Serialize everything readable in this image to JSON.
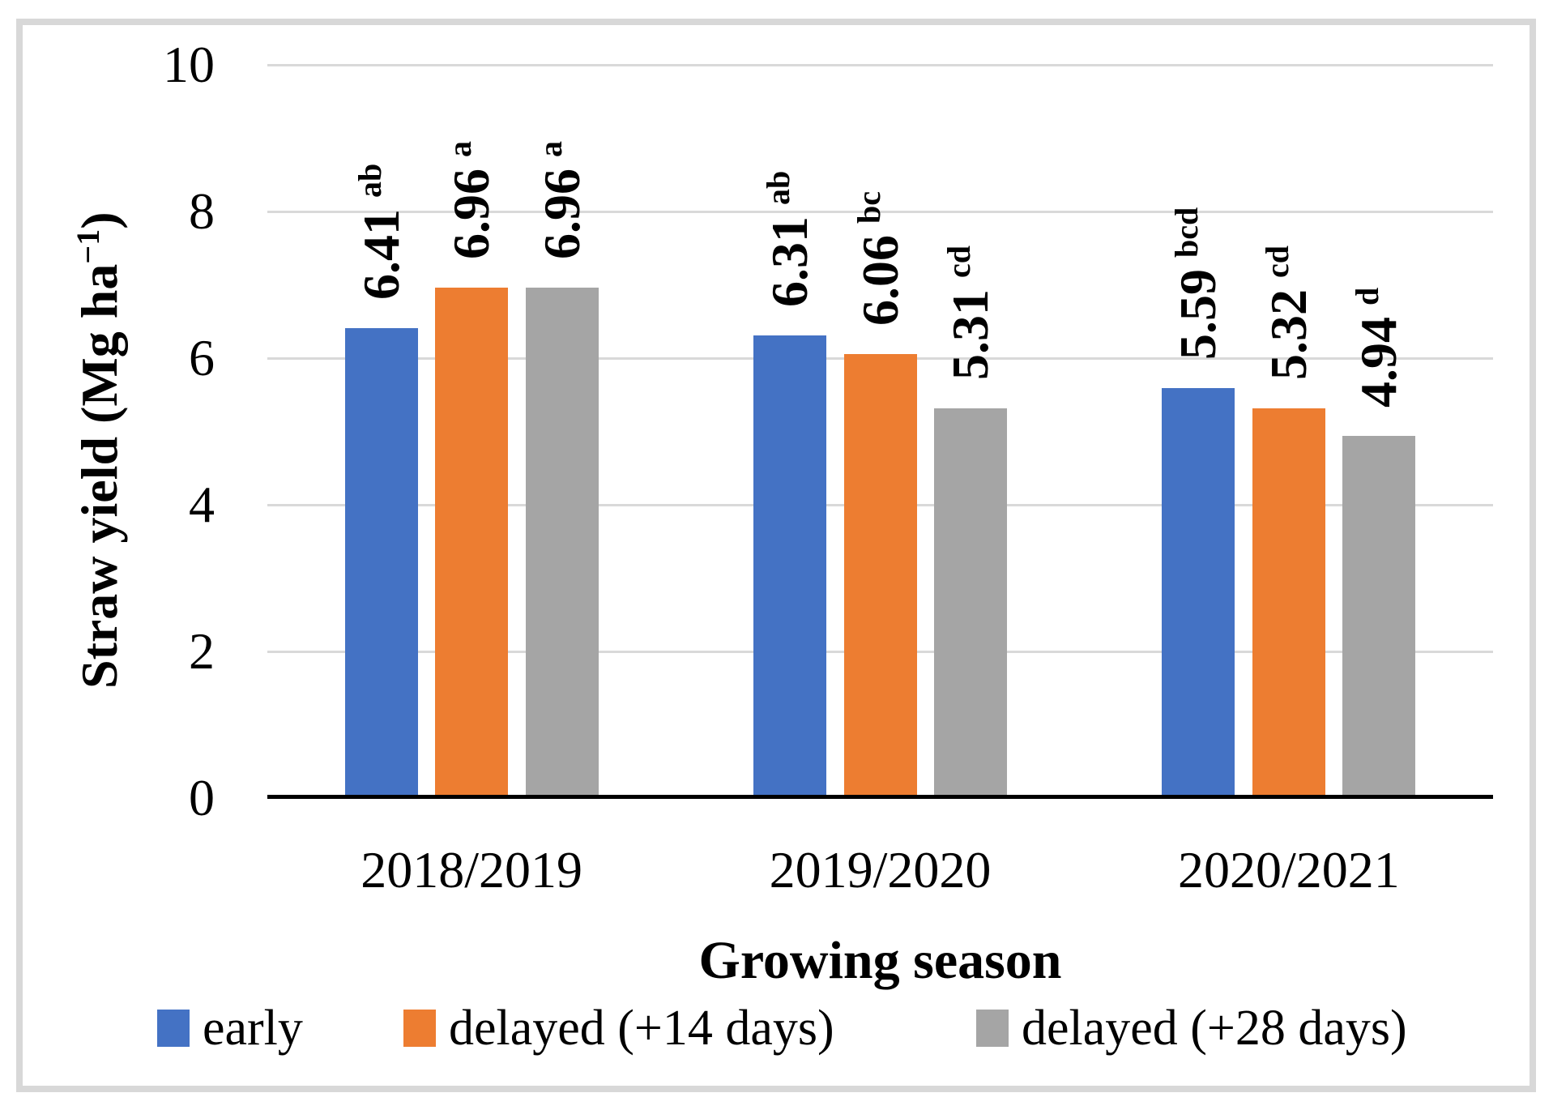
{
  "page": {
    "background": "#FFFFFF",
    "frame_border_color": "#D8D8D8"
  },
  "chart_data": {
    "type": "bar",
    "title": "",
    "categories": [
      "2018/2019",
      "2019/2020",
      "2020/2021"
    ],
    "series": [
      {
        "name": "early",
        "color": "#4472C4",
        "values": [
          6.41,
          6.31,
          5.59
        ],
        "significance": [
          "ab",
          "ab",
          "bcd"
        ]
      },
      {
        "name": "delayed (+14 days)",
        "color": "#ED7D31",
        "values": [
          6.96,
          6.06,
          5.32
        ],
        "significance": [
          "a",
          "bc",
          "cd"
        ]
      },
      {
        "name": "delayed (+28 days)",
        "color": "#A5A5A5",
        "values": [
          6.96,
          5.31,
          4.94
        ],
        "significance": [
          "a",
          "cd",
          "d"
        ]
      }
    ],
    "xlabel": "Growing season",
    "ylabel": {
      "prefix": "Straw yield (Mg ha",
      "superscript": "−1",
      "suffix": ")"
    },
    "ylim": [
      0,
      10
    ],
    "yticks": [
      0,
      2,
      4,
      6,
      8,
      10
    ],
    "grid": true,
    "gridline_color": "#D9D9D9",
    "axis_line_color": "#000000",
    "legend_position": "bottom"
  }
}
